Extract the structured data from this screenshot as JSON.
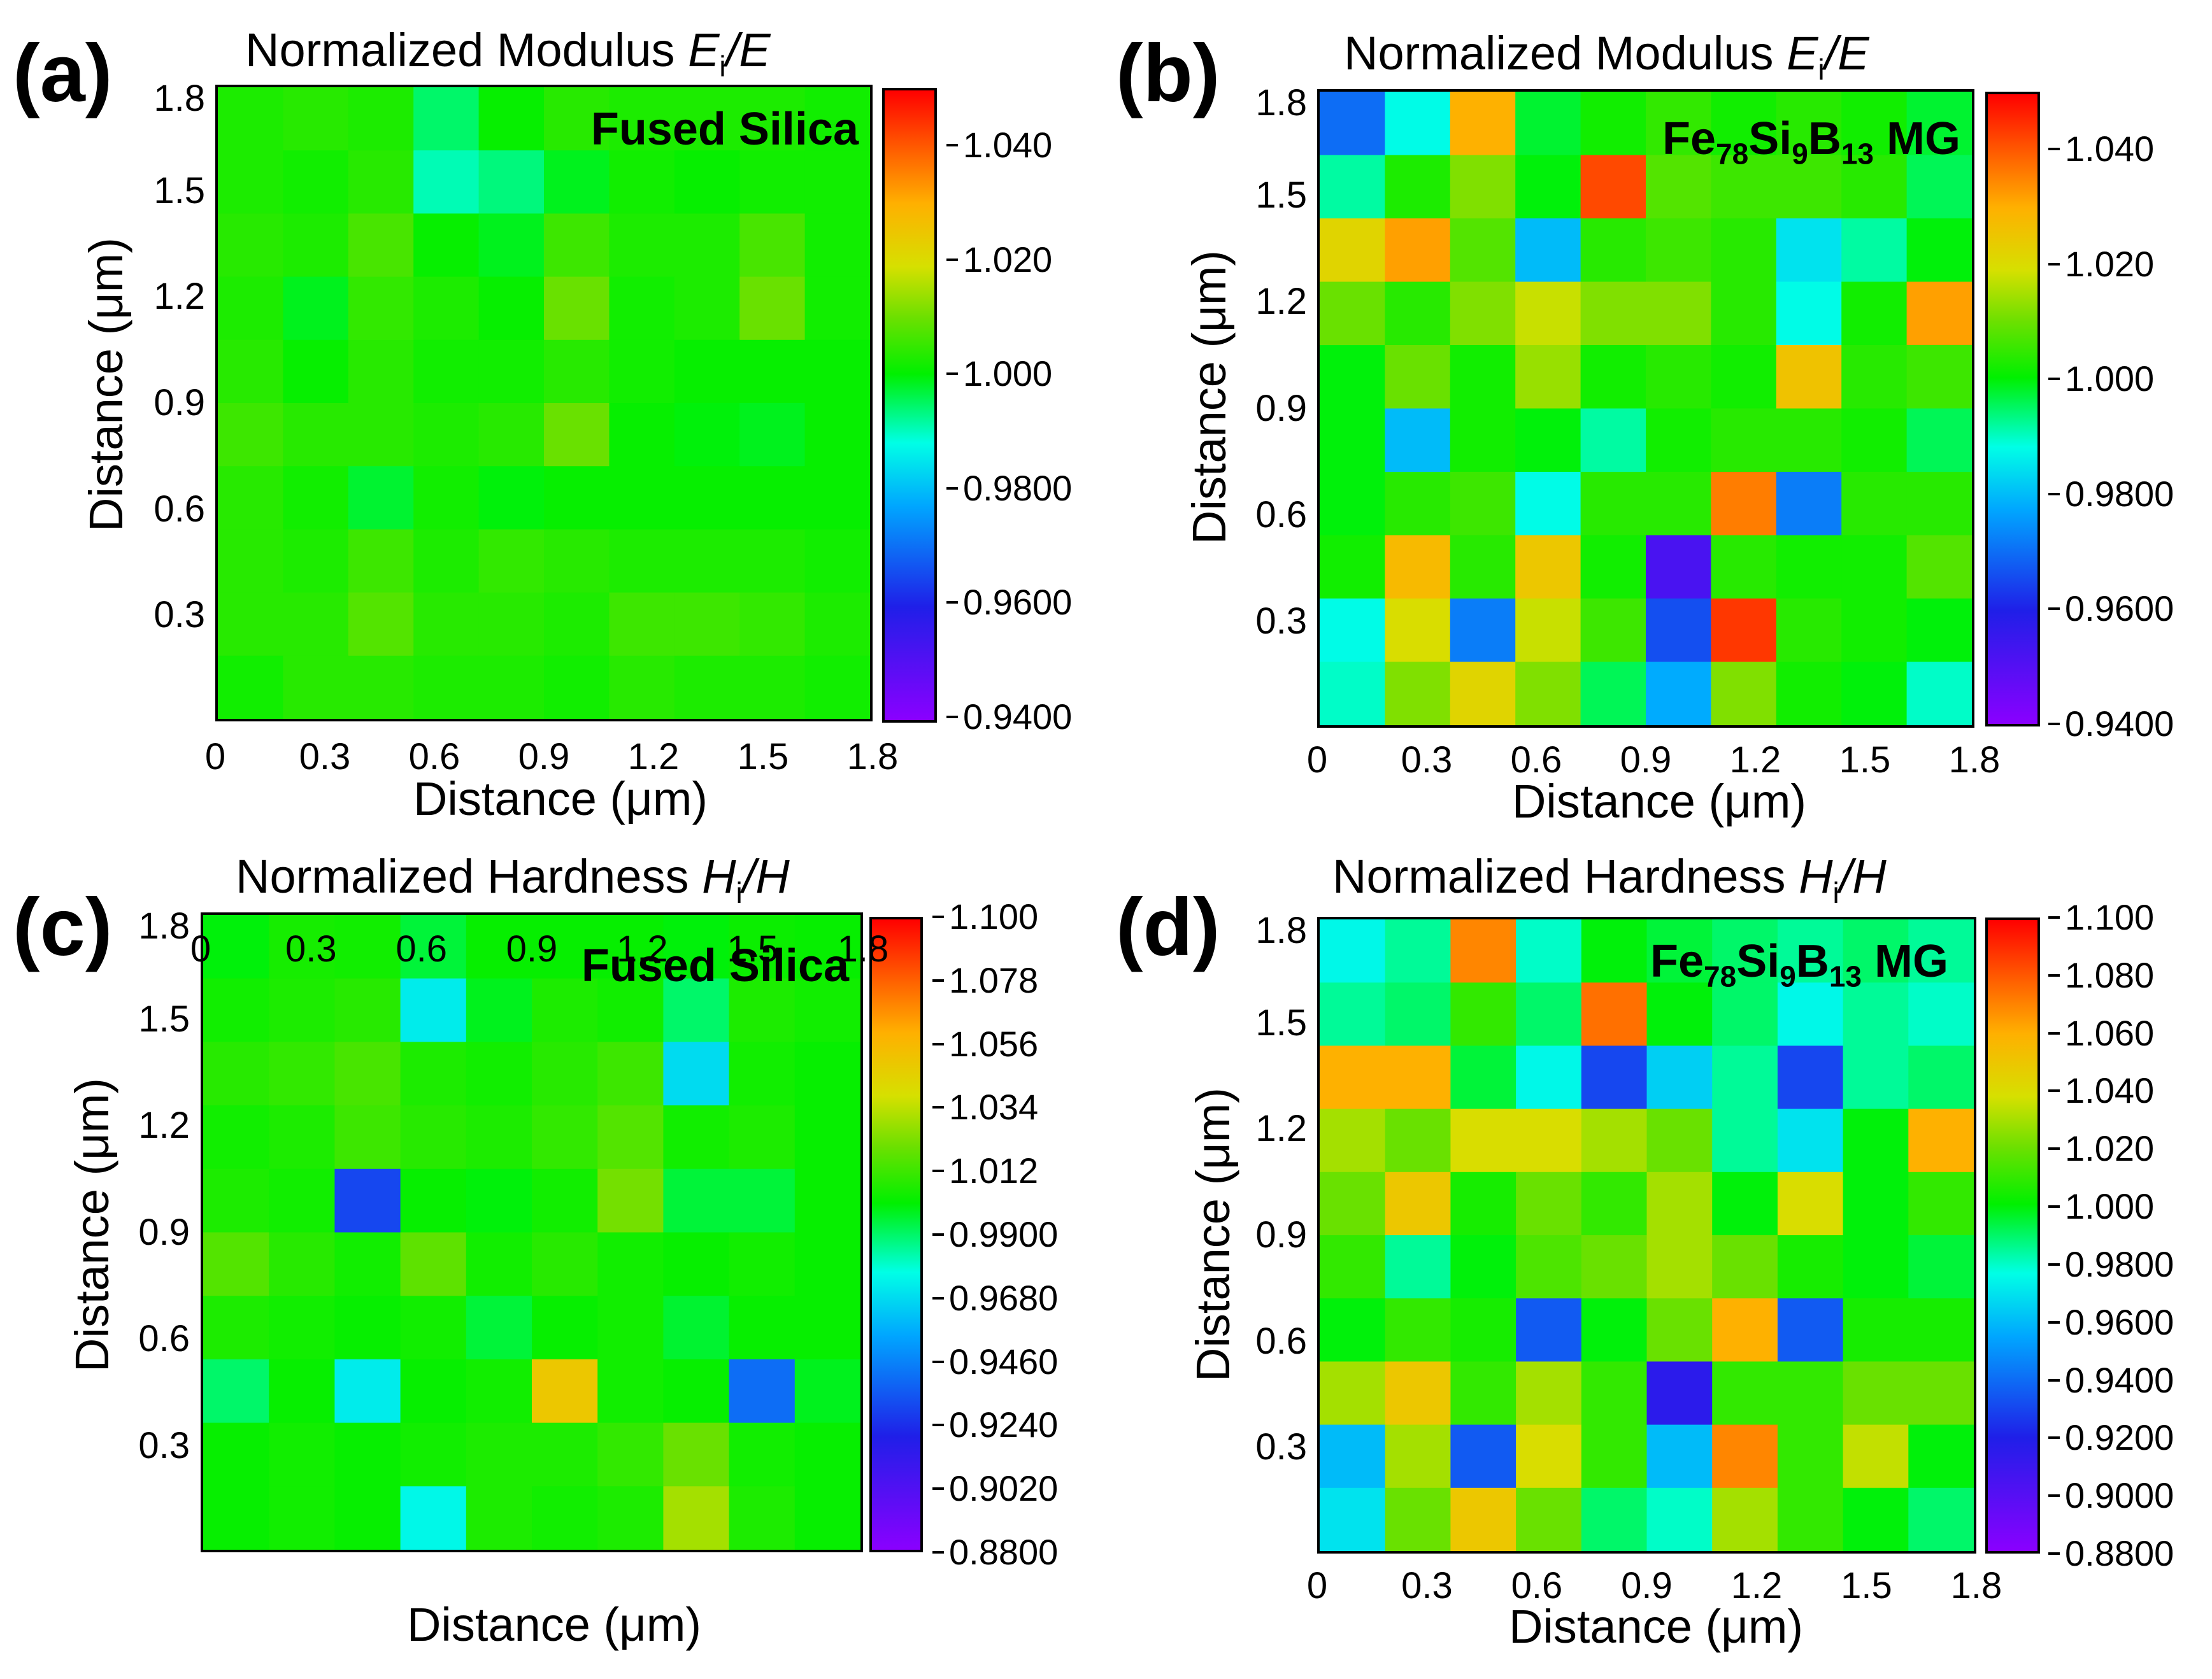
{
  "chart_data": [
    {
      "panel": "(a)",
      "type": "heatmap",
      "title_text": "Normalized Modulus ",
      "title_var": "E",
      "title_sub": "i",
      "title_tail": "/E",
      "sample": "Fused Silica",
      "xlabel": "Distance (μm)",
      "ylabel": "Distance (μm)",
      "xticks": [
        "0",
        "0.3",
        "0.6",
        "0.9",
        "1.2",
        "1.5",
        "1.8"
      ],
      "yticks": [
        "0.3",
        "0.6",
        "0.9",
        "1.2",
        "1.5",
        "1.8"
      ],
      "colorbar_ticks": [
        "1.040",
        "1.020",
        "1.000",
        "0.9800",
        "0.9600",
        "0.9400"
      ],
      "zlim": [
        0.94,
        1.05
      ],
      "grid_x": [
        0,
        0.2,
        0.4,
        0.6,
        0.8,
        1.0,
        1.2,
        1.4,
        1.6,
        1.8
      ],
      "grid_y": [
        1.8,
        1.6,
        1.4,
        1.2,
        1.0,
        0.8,
        0.6,
        0.4,
        0.2,
        0.0
      ],
      "z": [
        [
          1.003,
          1.004,
          1.003,
          0.995,
          1.001,
          1.004,
          1.003,
          1.003,
          1.003,
          1.002
        ],
        [
          1.003,
          1.002,
          1.004,
          0.991,
          0.994,
          0.999,
          1.002,
          1.001,
          1.002,
          1.002
        ],
        [
          1.004,
          1.003,
          1.007,
          1.001,
          0.999,
          1.006,
          1.003,
          1.003,
          1.007,
          1.002
        ],
        [
          1.003,
          0.999,
          1.005,
          1.003,
          1.001,
          1.01,
          1.002,
          1.003,
          1.01,
          1.002
        ],
        [
          1.004,
          1.001,
          1.004,
          1.002,
          1.002,
          1.004,
          1.002,
          1.001,
          1.001,
          1.001
        ],
        [
          1.006,
          1.004,
          1.004,
          1.003,
          1.004,
          1.01,
          1.001,
          1.0,
          0.999,
          1.001
        ],
        [
          1.004,
          1.002,
          0.998,
          1.002,
          1.0,
          1.001,
          1.001,
          1.001,
          1.001,
          1.001
        ],
        [
          1.004,
          1.003,
          1.006,
          1.003,
          1.005,
          1.004,
          1.003,
          1.003,
          1.003,
          1.002
        ],
        [
          1.004,
          1.004,
          1.008,
          1.004,
          1.004,
          1.003,
          1.006,
          1.006,
          1.005,
          1.003
        ],
        [
          1.002,
          1.004,
          1.004,
          1.003,
          1.003,
          1.002,
          1.004,
          1.003,
          1.003,
          1.002
        ]
      ]
    },
    {
      "panel": "(b)",
      "type": "heatmap",
      "title_text": "Normalized Modulus ",
      "title_var": "E",
      "title_sub": "i",
      "title_tail": "/E",
      "sample": "Fe78Si9B13 MG",
      "xlabel": "Distance (μm)",
      "ylabel": "Distance (μm)",
      "xticks": [
        "0",
        "0.3",
        "0.6",
        "0.9",
        "1.2",
        "1.5",
        "1.8"
      ],
      "yticks": [
        "0.3",
        "0.6",
        "0.9",
        "1.2",
        "1.5",
        "1.8"
      ],
      "colorbar_ticks": [
        "1.040",
        "1.020",
        "1.000",
        "0.9800",
        "0.9600",
        "0.9400"
      ],
      "zlim": [
        0.94,
        1.05
      ],
      "grid_x": [
        0,
        0.2,
        0.4,
        0.6,
        0.8,
        1.0,
        1.2,
        1.4,
        1.6,
        1.8
      ],
      "grid_y": [
        1.8,
        1.6,
        1.4,
        1.2,
        1.0,
        0.8,
        0.6,
        0.4,
        0.2,
        0.0
      ],
      "z": [
        [
          0.97,
          0.988,
          1.03,
          0.998,
          1.002,
          1.005,
          1.002,
          1.004,
          1.002,
          0.998
        ],
        [
          0.992,
          1.003,
          1.012,
          1.0,
          1.042,
          1.008,
          1.006,
          1.006,
          1.004,
          0.996
        ],
        [
          1.022,
          1.032,
          1.008,
          0.98,
          1.004,
          1.006,
          1.004,
          0.985,
          0.992,
          1.0
        ],
        [
          1.01,
          1.004,
          1.012,
          1.018,
          1.012,
          1.012,
          1.004,
          0.988,
          1.002,
          1.032
        ],
        [
          1.0,
          1.01,
          1.002,
          1.014,
          1.002,
          1.004,
          1.002,
          1.026,
          1.004,
          1.006
        ],
        [
          1.0,
          0.98,
          1.002,
          1.0,
          0.992,
          1.002,
          1.004,
          1.004,
          1.002,
          0.996
        ],
        [
          1.0,
          1.004,
          1.006,
          0.988,
          1.004,
          1.004,
          1.036,
          0.972,
          1.004,
          1.004
        ],
        [
          1.002,
          1.028,
          1.004,
          1.025,
          1.002,
          0.952,
          1.004,
          1.002,
          1.002,
          1.008
        ],
        [
          0.988,
          1.02,
          0.972,
          1.018,
          1.006,
          0.966,
          1.044,
          1.004,
          1.002,
          1.0
        ],
        [
          0.99,
          1.012,
          1.022,
          1.012,
          0.996,
          0.978,
          1.012,
          1.002,
          1.0,
          0.99
        ]
      ]
    },
    {
      "panel": "(c)",
      "type": "heatmap",
      "title_text": "Normalized Hardness ",
      "title_var": "H",
      "title_sub": "i",
      "title_tail": "/H",
      "sample": "Fused Silica",
      "xlabel": "Distance (μm)",
      "ylabel": "Distance (μm)",
      "xticks": [
        "0",
        "0.3",
        "0.6",
        "0.9",
        "1.2",
        "1.5",
        "1.8"
      ],
      "yticks": [
        "0.3",
        "0.6",
        "0.9",
        "1.2",
        "1.5",
        "1.8"
      ],
      "colorbar_ticks": [
        "1.100",
        "1.078",
        "1.056",
        "1.034",
        "1.012",
        "0.9900",
        "0.9680",
        "0.9460",
        "0.9240",
        "0.9020",
        "0.8800"
      ],
      "zlim": [
        0.88,
        1.1
      ],
      "grid_x": [
        0,
        0.2,
        0.4,
        0.6,
        0.8,
        1.0,
        1.2,
        1.4,
        1.6,
        1.8
      ],
      "grid_y": [
        1.8,
        1.6,
        1.4,
        1.2,
        1.0,
        0.8,
        0.6,
        0.4,
        0.2,
        0.0
      ],
      "z": [
        [
          1.0,
          1.005,
          1.004,
          0.995,
          1.002,
          1.002,
          1.002,
          1.0,
          1.003,
          1.002
        ],
        [
          1.004,
          1.006,
          1.008,
          0.972,
          0.998,
          1.006,
          1.004,
          0.99,
          1.006,
          1.004
        ],
        [
          1.008,
          1.01,
          1.014,
          1.006,
          1.004,
          1.008,
          1.012,
          0.968,
          1.004,
          1.002
        ],
        [
          1.004,
          1.006,
          1.012,
          1.008,
          1.006,
          1.01,
          1.016,
          1.004,
          1.006,
          1.002
        ],
        [
          1.006,
          1.004,
          0.93,
          1.002,
          1.0,
          1.004,
          1.022,
          0.995,
          0.995,
          1.002
        ],
        [
          1.016,
          1.008,
          1.004,
          1.018,
          1.004,
          1.008,
          1.004,
          1.002,
          1.004,
          1.002
        ],
        [
          1.006,
          1.004,
          1.002,
          1.004,
          0.995,
          1.002,
          1.004,
          0.996,
          1.002,
          1.002
        ],
        [
          0.99,
          1.002,
          0.972,
          1.002,
          1.004,
          1.05,
          1.004,
          1.002,
          0.94,
          0.998
        ],
        [
          1.002,
          1.004,
          1.002,
          1.004,
          1.006,
          1.006,
          1.01,
          1.02,
          1.004,
          1.002
        ],
        [
          1.002,
          1.004,
          1.002,
          0.975,
          1.006,
          1.004,
          1.006,
          1.03,
          1.006,
          1.002
        ]
      ]
    },
    {
      "panel": "(d)",
      "type": "heatmap",
      "title_text": "Normalized Hardness ",
      "title_var": "H",
      "title_sub": "i",
      "title_tail": "/H",
      "sample": "Fe78Si9B13 MG",
      "xlabel": "Distance (μm)",
      "ylabel": "Distance (μm)",
      "xticks": [
        "0",
        "0.3",
        "0.6",
        "0.9",
        "1.2",
        "1.5",
        "1.8"
      ],
      "yticks": [
        "0.3",
        "0.6",
        "0.9",
        "1.2",
        "1.5",
        "1.8"
      ],
      "colorbar_ticks": [
        "1.100",
        "1.080",
        "1.060",
        "1.040",
        "1.020",
        "1.000",
        "0.9800",
        "0.9600",
        "0.9400",
        "0.9200",
        "0.9000",
        "0.8800"
      ],
      "zlim": [
        0.88,
        1.1
      ],
      "grid_x": [
        0,
        0.2,
        0.4,
        0.6,
        0.8,
        1.0,
        1.2,
        1.4,
        1.6,
        1.8
      ],
      "grid_y": [
        1.8,
        1.6,
        1.4,
        1.2,
        1.0,
        0.8,
        0.6,
        0.4,
        0.2,
        0.0
      ],
      "z": [
        [
          0.975,
          0.985,
          1.07,
          0.98,
          1.0,
          0.995,
          0.99,
          0.985,
          0.99,
          0.985
        ],
        [
          0.985,
          0.99,
          1.01,
          0.99,
          1.075,
          1.0,
          0.99,
          0.975,
          0.985,
          0.98
        ],
        [
          1.06,
          1.06,
          0.995,
          0.975,
          0.93,
          0.965,
          0.985,
          0.93,
          0.985,
          0.99
        ],
        [
          1.03,
          1.02,
          1.04,
          1.04,
          1.03,
          1.02,
          0.985,
          0.97,
          1.0,
          1.06
        ],
        [
          1.02,
          1.05,
          1.005,
          1.02,
          1.01,
          1.03,
          1.0,
          1.04,
          1.0,
          1.01
        ],
        [
          1.01,
          0.985,
          1.0,
          1.015,
          1.02,
          1.03,
          1.02,
          1.005,
          1.0,
          0.995
        ],
        [
          1.0,
          1.01,
          1.005,
          0.935,
          1.0,
          1.02,
          1.06,
          0.935,
          1.005,
          1.005
        ],
        [
          1.03,
          1.05,
          1.01,
          1.03,
          1.01,
          0.915,
          1.01,
          1.01,
          1.02,
          1.02
        ],
        [
          0.96,
          1.03,
          0.935,
          1.04,
          1.01,
          0.96,
          1.07,
          1.01,
          1.035,
          1.0
        ],
        [
          0.97,
          1.02,
          1.05,
          1.02,
          0.99,
          0.98,
          1.03,
          1.01,
          1.0,
          0.99
        ]
      ]
    }
  ]
}
